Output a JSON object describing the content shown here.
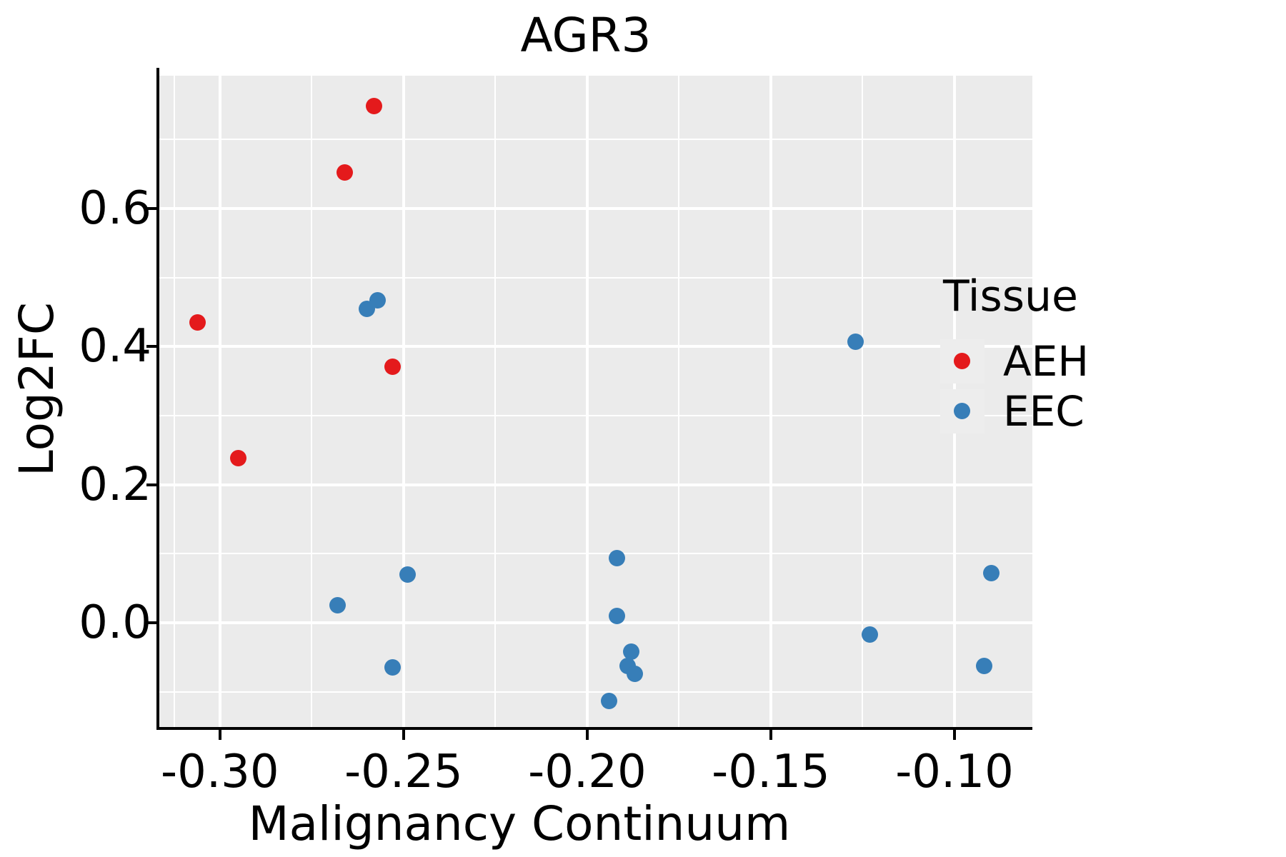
{
  "figure": {
    "title": "AGR3"
  },
  "legend": {
    "title": "Tissue",
    "key_background": "#EDEDED",
    "entries": [
      {
        "label": "AEH",
        "color": "#E41A1C"
      },
      {
        "label": "EEC",
        "color": "#377EB8"
      }
    ]
  },
  "chart_data": {
    "type": "scatter",
    "title": "AGR3",
    "xlabel": "Malignancy Continuum",
    "ylabel": "Log2FC",
    "xlim": [
      -0.3165,
      -0.0788
    ],
    "ylim": [
      -0.1531,
      0.7926
    ],
    "x_major_ticks": [
      -0.3,
      -0.25,
      -0.2,
      -0.15,
      -0.1
    ],
    "x_tick_labels": [
      "-0.30",
      "-0.25",
      "-0.20",
      "-0.15",
      "-0.10"
    ],
    "x_minor_ticks": [
      -0.3125,
      -0.275,
      -0.225,
      -0.175,
      -0.125
    ],
    "y_major_ticks": [
      0.6,
      0.4,
      0.2,
      0.0
    ],
    "y_tick_labels": [
      "0.6",
      "0.4",
      "0.2",
      "0.0"
    ],
    "y_minor_ticks": [
      0.7,
      0.5,
      0.3,
      0.1,
      -0.1
    ],
    "grid": true,
    "legend_position": "right",
    "panel_background": "#EBEBEB",
    "grid_color": "#FFFFFF",
    "axis_color": "#000000",
    "series": [
      {
        "name": "AEH",
        "color": "#E41A1C",
        "points": [
          [
            -0.306,
            0.435
          ],
          [
            -0.295,
            0.239
          ],
          [
            -0.266,
            0.652
          ],
          [
            -0.258,
            0.749
          ],
          [
            -0.253,
            0.371
          ]
        ]
      },
      {
        "name": "EEC",
        "color": "#377EB8",
        "points": [
          [
            -0.268,
            0.025
          ],
          [
            -0.26,
            0.455
          ],
          [
            -0.257,
            0.467
          ],
          [
            -0.253,
            -0.065
          ],
          [
            -0.249,
            0.07
          ],
          [
            -0.194,
            -0.113
          ],
          [
            -0.192,
            0.094
          ],
          [
            -0.192,
            0.01
          ],
          [
            -0.189,
            -0.063
          ],
          [
            -0.188,
            -0.042
          ],
          [
            -0.187,
            -0.074
          ],
          [
            -0.127,
            0.407
          ],
          [
            -0.123,
            -0.017
          ],
          [
            -0.092,
            -0.063
          ],
          [
            -0.09,
            0.072
          ]
        ]
      }
    ]
  }
}
